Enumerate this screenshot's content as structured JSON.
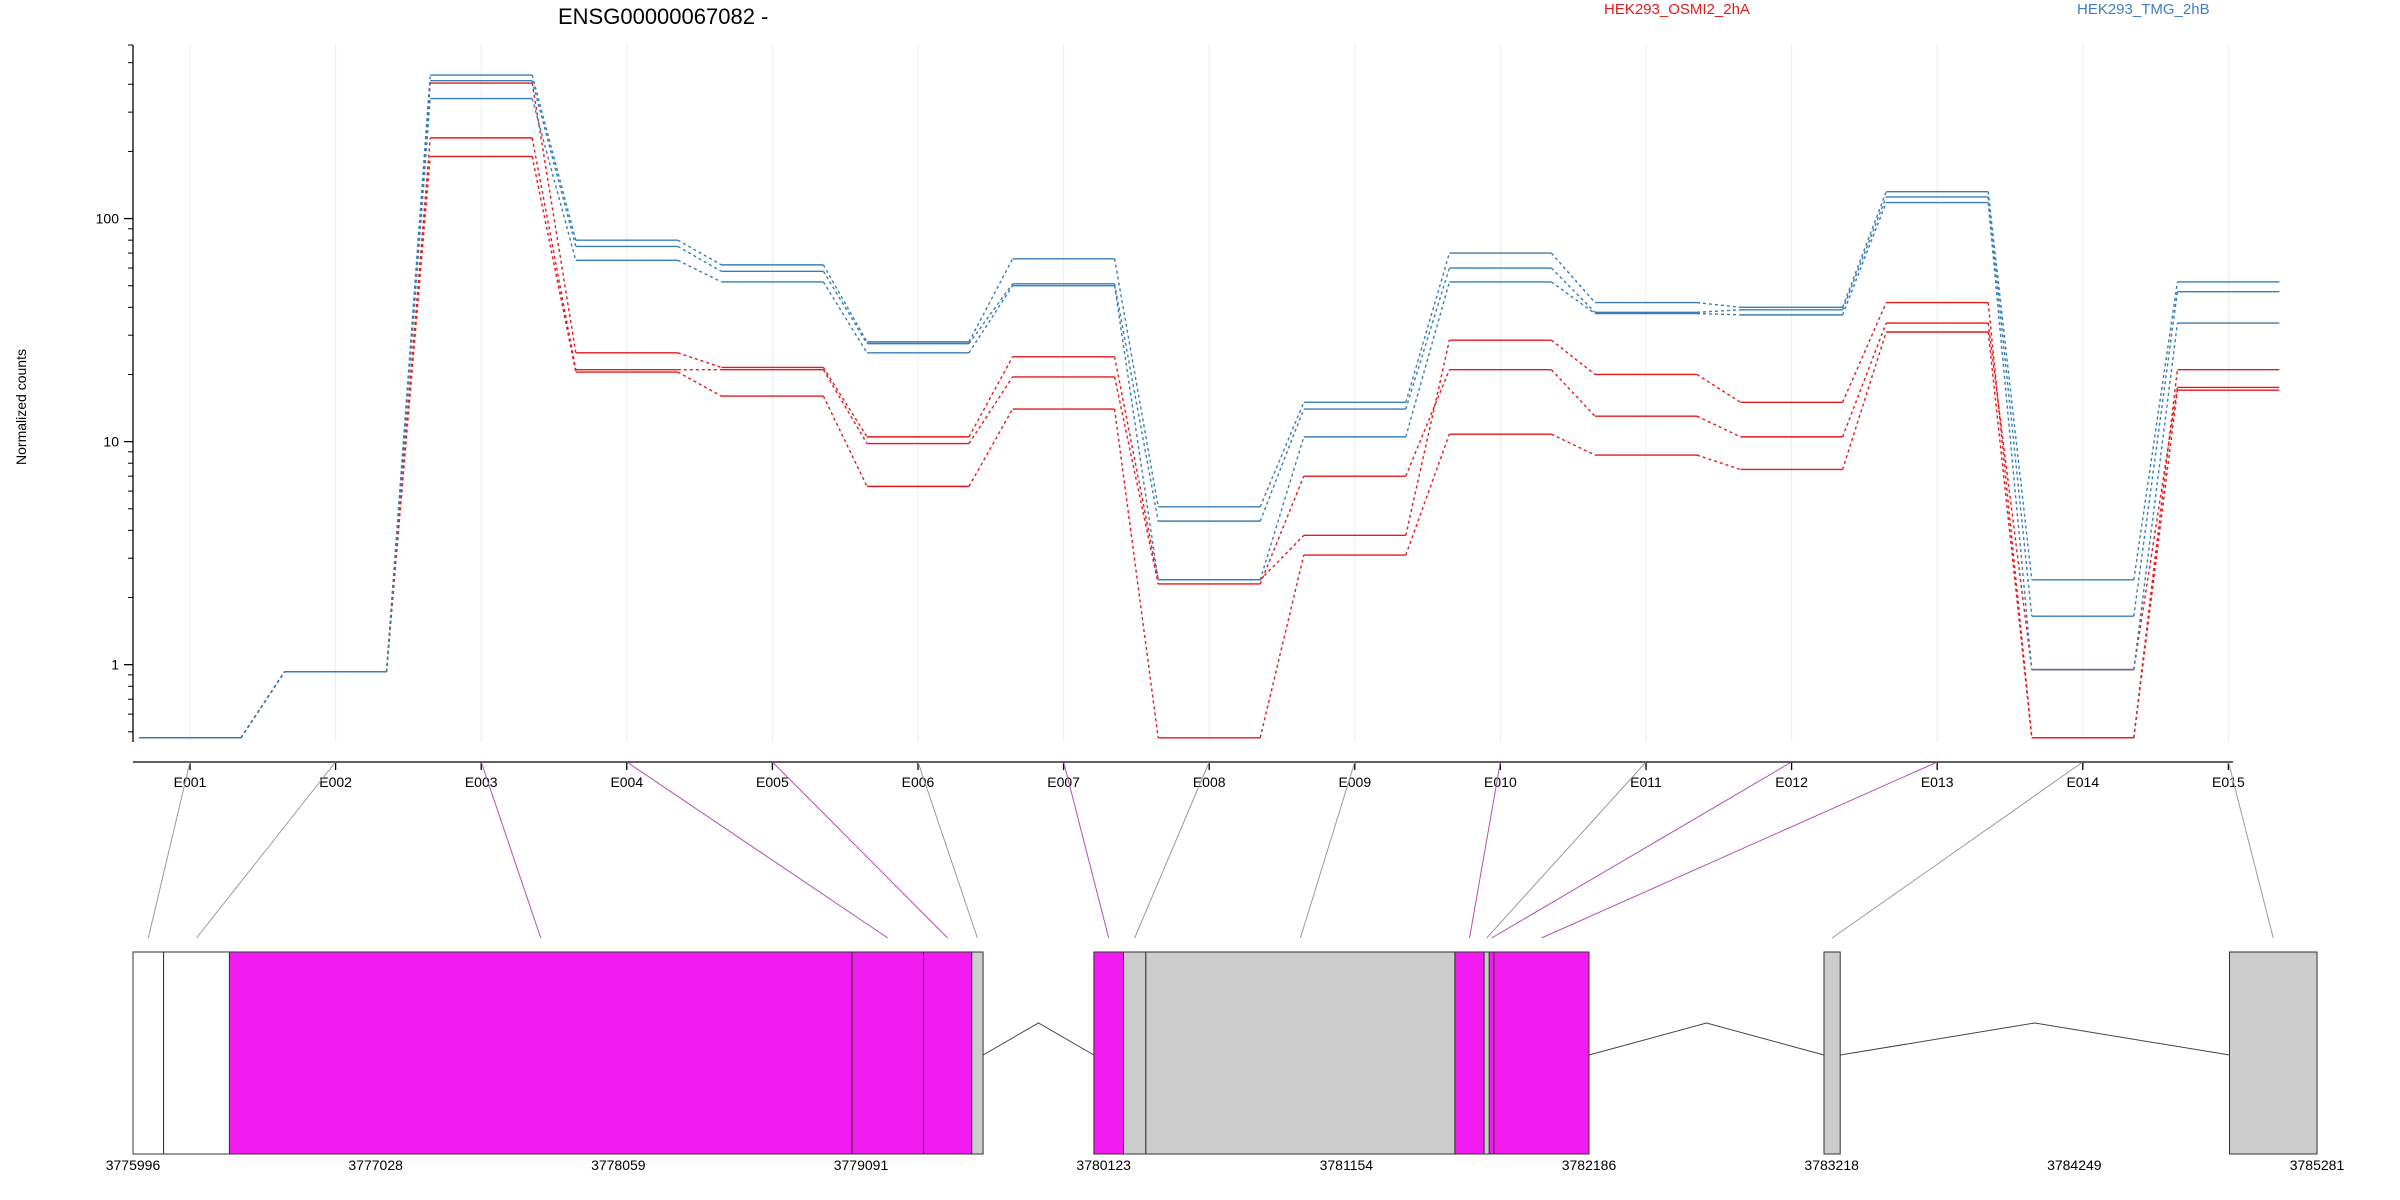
{
  "chart_data": {
    "type": "line",
    "title": "ENSG00000067082 -",
    "ylabel": "Normalized counts",
    "y_scale": "log",
    "ylim": [
      0.45,
      600
    ],
    "y_ticks": [
      {
        "value": 1,
        "label": "1"
      },
      {
        "value": 10,
        "label": "10"
      },
      {
        "value": 100,
        "label": "100"
      }
    ],
    "categories": [
      "E001",
      "E002",
      "E003",
      "E004",
      "E005",
      "E006",
      "E007",
      "E008",
      "E009",
      "E010",
      "E011",
      "E012",
      "E013",
      "E014",
      "E015"
    ],
    "legend": [
      {
        "name": "HEK293_OSMI2_2hA",
        "color": "#dd1c1c"
      },
      {
        "name": "HEK293_TMG_2hB",
        "color": "#3f7fbf"
      }
    ],
    "grid": "vertical",
    "series": [
      {
        "group": "HEK293_OSMI2_2hA",
        "color": "#e41a1c",
        "values": [
          0.47,
          0.93,
          405,
          25,
          21.5,
          10.5,
          24,
          2.4,
          3.8,
          28.5,
          20,
          15,
          42,
          0.47,
          21
        ]
      },
      {
        "group": "HEK293_OSMI2_2hA",
        "color": "#e41a1c",
        "values": [
          0.47,
          0.93,
          230,
          21,
          21,
          9.8,
          19.5,
          2.3,
          7,
          21,
          13,
          10.5,
          34,
          0.95,
          17.5
        ]
      },
      {
        "group": "HEK293_OSMI2_2hA",
        "color": "#e41a1c",
        "values": [
          0.47,
          0.93,
          190,
          20.5,
          16,
          6.3,
          14,
          0.47,
          3.1,
          10.8,
          8.7,
          7.5,
          31,
          0.47,
          17
        ]
      },
      {
        "group": "HEK293_TMG_2hB",
        "color": "#377eb8",
        "values": [
          0.47,
          0.93,
          440,
          80,
          62,
          28,
          66,
          5.1,
          15,
          70,
          42,
          40,
          132,
          2.4,
          52
        ]
      },
      {
        "group": "HEK293_TMG_2hB",
        "color": "#377eb8",
        "values": [
          0.47,
          0.93,
          415,
          75,
          58,
          27.5,
          51,
          4.4,
          14,
          60,
          38,
          39,
          125,
          1.65,
          47
        ]
      },
      {
        "group": "HEK293_TMG_2hB",
        "color": "#377eb8",
        "values": [
          0.47,
          0.93,
          345,
          65,
          52,
          25,
          50,
          2.4,
          10.5,
          52,
          37.5,
          37,
          118,
          0.95,
          34
        ]
      }
    ],
    "gene_model": {
      "coordinate_labels": [
        "3775996",
        "3777028",
        "3778059",
        "3779091",
        "3780123",
        "3781154",
        "3782186",
        "3783218",
        "3784249",
        "3785281"
      ],
      "exons": [
        {
          "id": "E001",
          "start": 3775996,
          "end": 3776126,
          "fill": "#ffffff",
          "differential": false
        },
        {
          "id": "E002",
          "start": 3776126,
          "end": 3776406,
          "fill": "#ffffff",
          "differential": false
        },
        {
          "id": "E003",
          "start": 3776406,
          "end": 3779053,
          "fill": "#f21cf0",
          "differential": true
        },
        {
          "id": "E004",
          "start": 3779053,
          "end": 3779357,
          "fill": "#f21cf0",
          "differential": true
        },
        {
          "id": "E005",
          "start": 3779357,
          "end": 3779562,
          "fill": "#f21cf0",
          "differential": true
        },
        {
          "id": "E006",
          "start": 3779562,
          "end": 3779610,
          "fill": "#cccccc",
          "differential": false
        },
        {
          "id": "E007",
          "start": 3780081,
          "end": 3780207,
          "fill": "#f21cf0",
          "differential": true
        },
        {
          "id": "E008",
          "start": 3780207,
          "end": 3780302,
          "fill": "#cccccc",
          "differential": false
        },
        {
          "id": "E009",
          "start": 3780302,
          "end": 3781616,
          "fill": "#cccccc",
          "differential": false
        },
        {
          "id": "E010",
          "start": 3781616,
          "end": 3781740,
          "fill": "#f21cf0",
          "differential": true
        },
        {
          "id": "E011",
          "start": 3781740,
          "end": 3781762,
          "fill": "#cccccc",
          "differential": false
        },
        {
          "id": "E012",
          "start": 3781762,
          "end": 3781782,
          "fill": "#f21cf0",
          "differential": true
        },
        {
          "id": "E013",
          "start": 3781782,
          "end": 3782186,
          "fill": "#f21cf0",
          "differential": true
        },
        {
          "id": "E014",
          "start": 3783185,
          "end": 3783254,
          "fill": "#cccccc",
          "differential": false
        },
        {
          "id": "E015",
          "start": 3784909,
          "end": 3785281,
          "fill": "#cccccc",
          "differential": false
        }
      ]
    }
  }
}
